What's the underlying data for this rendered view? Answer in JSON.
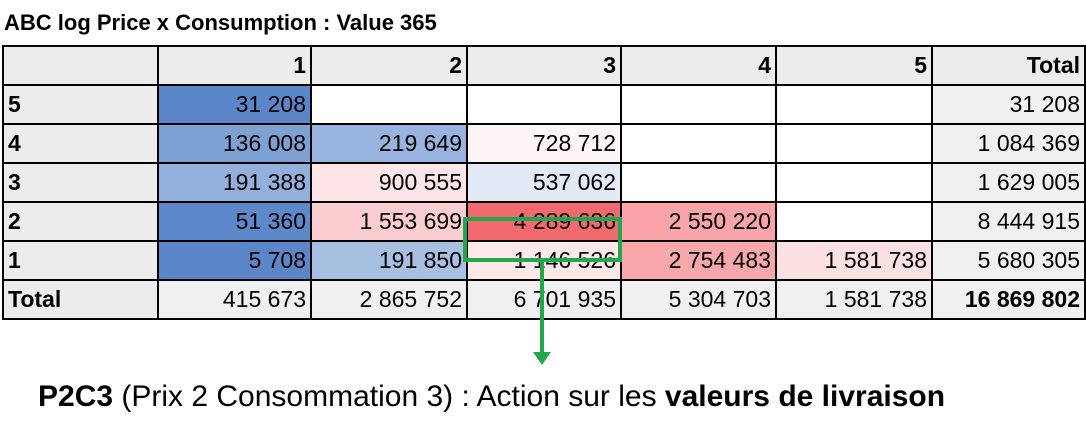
{
  "chart_data": {
    "type": "table",
    "title": "ABC log Price x Consumption :  Value 365",
    "corner": "",
    "columns": [
      "1",
      "2",
      "3",
      "4",
      "5",
      "Total"
    ],
    "rows": [
      {
        "label": "5",
        "values": [
          "31 208",
          "",
          "",
          "",
          "",
          "31 208"
        ]
      },
      {
        "label": "4",
        "values": [
          "136 008",
          "219 649",
          "728 712",
          "",
          "",
          "1 084 369"
        ]
      },
      {
        "label": "3",
        "values": [
          "191 388",
          "900 555",
          "537 062",
          "",
          "",
          "1 629 005"
        ]
      },
      {
        "label": "2",
        "values": [
          "51 360",
          "1 553 699",
          "4 289 636",
          "2 550 220",
          "",
          "8 444 915"
        ]
      },
      {
        "label": "1",
        "values": [
          "5 708",
          "191 850",
          "1 146 526",
          "2 754 483",
          "1 581 738",
          "5 680 305"
        ]
      },
      {
        "label": "Total",
        "values": [
          "415 673",
          "2 865 752",
          "6 701 935",
          "5 304 703",
          "1 581 738",
          "16 869 802"
        ]
      }
    ],
    "cell_colors": [
      [
        "#5b87c9",
        "#ffffff",
        "#ffffff",
        "#ffffff",
        "#ffffff"
      ],
      [
        "#7ea1d4",
        "#98b4de",
        "#fdf5f6",
        "#ffffff",
        "#ffffff"
      ],
      [
        "#93b0dc",
        "#fde4e6",
        "#e3eaf6",
        "#ffffff",
        "#ffffff"
      ],
      [
        "#5d88c9",
        "#fccdd0",
        "#f26a6d",
        "#f8a4a8",
        "#ffffff"
      ],
      [
        "#5b87c9",
        "#a7c0e2",
        "#fde8ea",
        "#f8a7ab",
        "#fde0e2"
      ]
    ],
    "highlight_cell": {
      "row": "2",
      "column": "3",
      "color": "#22a84a"
    }
  },
  "caption": {
    "code": "P2C3",
    "middle": " (Prix 2 Consommation 3) : Action sur les ",
    "emphasis": "valeurs de livraison"
  }
}
